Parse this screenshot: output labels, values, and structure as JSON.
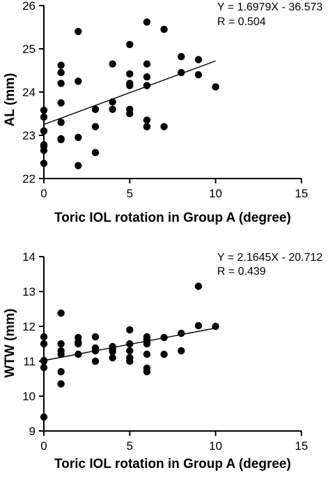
{
  "chart_data": [
    {
      "type": "scatter",
      "xlabel": "Toric IOL rotation in Group A (degree)",
      "ylabel": "AL (mm)",
      "xlim": [
        0,
        15
      ],
      "ylim": [
        22,
        26
      ],
      "xticks": [
        0,
        5,
        10,
        15
      ],
      "yticks": [
        22,
        23,
        24,
        25,
        26
      ],
      "x_tick_labels": [
        "0",
        "5",
        "10",
        "15"
      ],
      "y_tick_labels": [
        "22",
        "23",
        "24",
        "25",
        "26"
      ],
      "equation": "Y = 1.6979X - 36.573",
      "r_text": "R = 0.504",
      "fit_line": {
        "x": [
          0,
          10
        ],
        "y": [
          23.25,
          24.72
        ]
      },
      "x": [
        0,
        0,
        0,
        0,
        0,
        0,
        0,
        0,
        1,
        1,
        1,
        1,
        1,
        1,
        1,
        2,
        2,
        2,
        2,
        3,
        3,
        3,
        3,
        4,
        4,
        4,
        5,
        5,
        5,
        5,
        5,
        5,
        6,
        6,
        6,
        6,
        6,
        6,
        6,
        7,
        7,
        8,
        8,
        9,
        9,
        10
      ],
      "y": [
        22.35,
        22.65,
        22.78,
        23.1,
        23.42,
        23.58,
        22.75,
        23.1,
        22.9,
        22.92,
        23.3,
        23.75,
        24.2,
        24.45,
        24.62,
        22.3,
        22.95,
        24.25,
        25.4,
        22.6,
        23.2,
        23.6,
        23.6,
        23.6,
        23.77,
        24.65,
        23.5,
        23.6,
        24.15,
        24.2,
        24.42,
        25.1,
        23.2,
        23.35,
        24.15,
        24.35,
        24.65,
        25.62,
        23.2,
        23.2,
        25.45,
        24.45,
        24.82,
        24.4,
        24.75,
        24.12
      ]
    },
    {
      "type": "scatter",
      "xlabel": "Toric IOL rotation in Group A (degree)",
      "ylabel": "WTW (mm)",
      "xlim": [
        0,
        15
      ],
      "ylim": [
        9,
        14
      ],
      "xticks": [
        0,
        5,
        10,
        15
      ],
      "yticks": [
        9,
        10,
        11,
        12,
        13,
        14
      ],
      "x_tick_labels": [
        "0",
        "5",
        "10",
        "15"
      ],
      "y_tick_labels": [
        "9",
        "10",
        "11",
        "12",
        "13",
        "14"
      ],
      "equation": "Y = 2.1645X - 20.712",
      "r_text": "R = 0.439",
      "fit_line": {
        "x": [
          0,
          10
        ],
        "y": [
          11.02,
          11.95
        ]
      },
      "x": [
        0,
        0,
        0,
        0,
        0,
        0,
        1,
        1,
        1,
        1,
        1,
        1,
        2,
        2,
        2,
        2,
        3,
        3,
        3,
        3,
        4,
        4,
        4,
        4,
        5,
        5,
        5,
        5,
        5,
        6,
        6,
        6,
        6,
        6,
        6,
        6,
        7,
        7,
        8,
        8,
        9,
        9,
        10
      ],
      "y": [
        9.4,
        10.82,
        11.0,
        11.02,
        11.5,
        11.7,
        10.35,
        10.7,
        11.2,
        11.3,
        11.5,
        12.38,
        11.2,
        11.5,
        11.55,
        11.68,
        11.0,
        11.3,
        11.38,
        11.7,
        11.1,
        11.28,
        11.35,
        11.42,
        11.0,
        11.1,
        11.3,
        11.5,
        11.9,
        10.7,
        10.8,
        11.2,
        11.5,
        11.55,
        11.62,
        11.7,
        11.2,
        11.68,
        11.3,
        11.8,
        12.02,
        13.15,
        12.0
      ]
    }
  ]
}
